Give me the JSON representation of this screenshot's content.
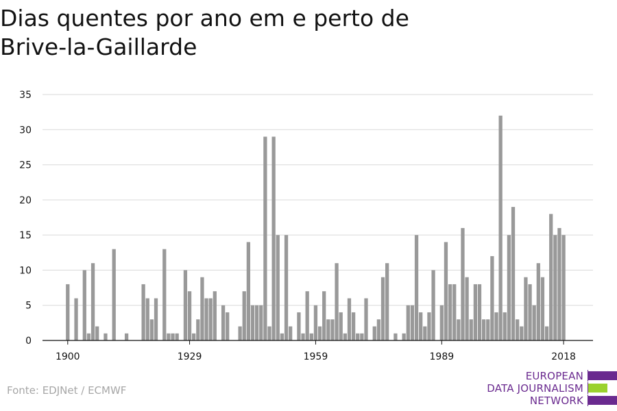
{
  "title_lines": [
    "Dias quentes por ano em e perto de",
    "Brive-la-Gaillarde"
  ],
  "source": "Fonte: EDJNet / ECMWF",
  "logo": {
    "lines": [
      "EUROPEAN",
      "DATA JOURNALISM",
      "NETWORK"
    ],
    "colors": [
      "#6a2a8f",
      "#9bd22e",
      "#6a2a8f"
    ]
  },
  "colors": {
    "bar": "#999999",
    "grid": "#d9d9d9",
    "axis": "#111111",
    "tick_text": "#111111"
  },
  "chart_data": {
    "type": "bar",
    "title": "Dias quentes por ano em e perto de Brive-la-Gaillarde",
    "xlabel": "",
    "ylabel": "",
    "ylim": [
      0,
      35
    ],
    "yticks": [
      0,
      5,
      10,
      15,
      20,
      25,
      30,
      35
    ],
    "xticks": [
      1900,
      1929,
      1959,
      1989,
      2018
    ],
    "xlim": [
      1894,
      2025
    ],
    "grid": true,
    "x": [
      1900,
      1901,
      1902,
      1903,
      1904,
      1905,
      1906,
      1907,
      1908,
      1909,
      1910,
      1911,
      1912,
      1913,
      1914,
      1915,
      1916,
      1917,
      1918,
      1919,
      1920,
      1921,
      1922,
      1923,
      1924,
      1925,
      1926,
      1927,
      1928,
      1929,
      1930,
      1931,
      1932,
      1933,
      1934,
      1935,
      1936,
      1937,
      1938,
      1939,
      1940,
      1941,
      1942,
      1943,
      1944,
      1945,
      1946,
      1947,
      1948,
      1949,
      1950,
      1951,
      1952,
      1953,
      1954,
      1955,
      1956,
      1957,
      1958,
      1959,
      1960,
      1961,
      1962,
      1963,
      1964,
      1965,
      1966,
      1967,
      1968,
      1969,
      1970,
      1971,
      1972,
      1973,
      1974,
      1975,
      1976,
      1977,
      1978,
      1979,
      1980,
      1981,
      1982,
      1983,
      1984,
      1985,
      1986,
      1987,
      1988,
      1989,
      1990,
      1991,
      1992,
      1993,
      1994,
      1995,
      1996,
      1997,
      1998,
      1999,
      2000,
      2001,
      2002,
      2003,
      2004,
      2005,
      2006,
      2007,
      2008,
      2009,
      2010,
      2011,
      2012,
      2013,
      2014,
      2015,
      2016,
      2017,
      2018
    ],
    "values": [
      8,
      0,
      6,
      0,
      10,
      1,
      11,
      2,
      0,
      1,
      0,
      13,
      0,
      0,
      1,
      0,
      0,
      0,
      8,
      6,
      3,
      6,
      0,
      13,
      1,
      1,
      1,
      0,
      10,
      7,
      1,
      3,
      9,
      6,
      6,
      7,
      0,
      5,
      4,
      0,
      0,
      2,
      7,
      14,
      5,
      5,
      5,
      29,
      2,
      29,
      15,
      1,
      15,
      2,
      0,
      4,
      1,
      7,
      1,
      5,
      2,
      7,
      3,
      3,
      11,
      4,
      1,
      6,
      4,
      1,
      1,
      6,
      0,
      2,
      3,
      9,
      11,
      0,
      1,
      0,
      1,
      5,
      5,
      15,
      4,
      2,
      4,
      10,
      0,
      5,
      14,
      8,
      8,
      3,
      16,
      9,
      3,
      8,
      8,
      3,
      3,
      12,
      4,
      32,
      4,
      15,
      19,
      3,
      2,
      9,
      8,
      5,
      11,
      9,
      2,
      18,
      15,
      16,
      15
    ]
  }
}
